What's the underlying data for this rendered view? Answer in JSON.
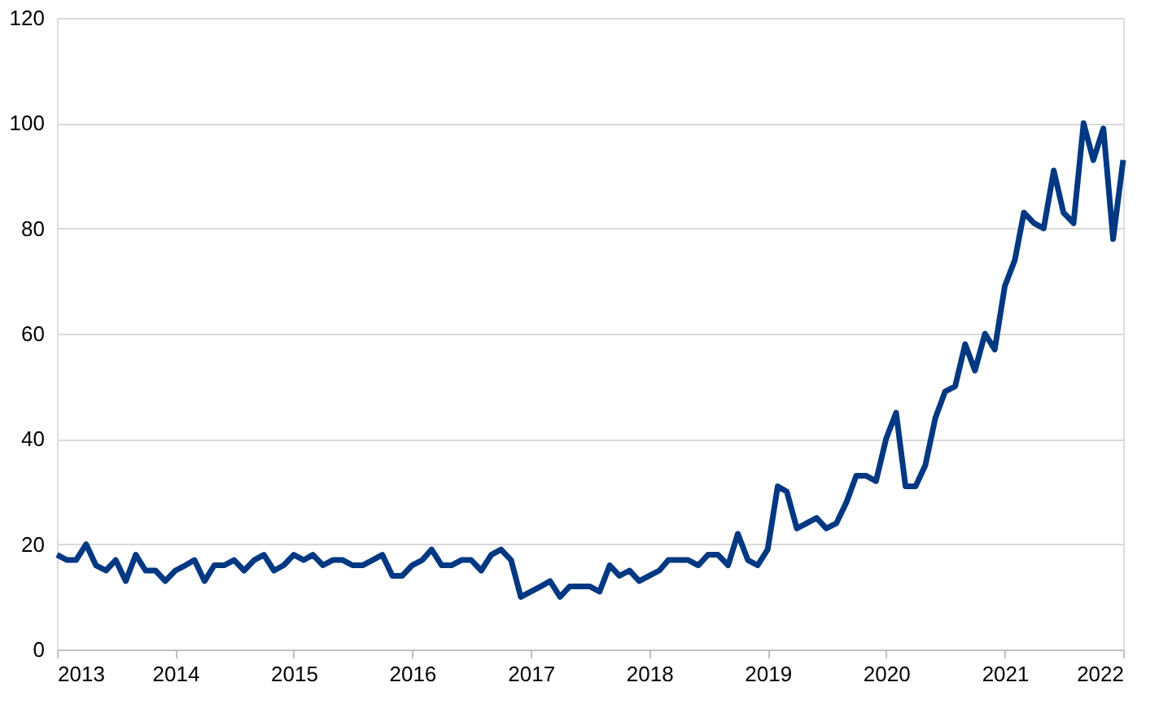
{
  "chart_data": {
    "type": "line",
    "x": [
      "2013-01",
      "2013-02",
      "2013-03",
      "2013-04",
      "2013-05",
      "2013-06",
      "2013-07",
      "2013-08",
      "2013-09",
      "2013-10",
      "2013-11",
      "2013-12",
      "2014-01",
      "2014-02",
      "2014-03",
      "2014-04",
      "2014-05",
      "2014-06",
      "2014-07",
      "2014-08",
      "2014-09",
      "2014-10",
      "2014-11",
      "2014-12",
      "2015-01",
      "2015-02",
      "2015-03",
      "2015-04",
      "2015-05",
      "2015-06",
      "2015-07",
      "2015-08",
      "2015-09",
      "2015-10",
      "2015-11",
      "2015-12",
      "2016-01",
      "2016-02",
      "2016-03",
      "2016-04",
      "2016-05",
      "2016-06",
      "2016-07",
      "2016-08",
      "2016-09",
      "2016-10",
      "2016-11",
      "2016-12",
      "2017-01",
      "2017-02",
      "2017-03",
      "2017-04",
      "2017-05",
      "2017-06",
      "2017-07",
      "2017-08",
      "2017-09",
      "2017-10",
      "2017-11",
      "2017-12",
      "2018-01",
      "2018-02",
      "2018-03",
      "2018-04",
      "2018-05",
      "2018-06",
      "2018-07",
      "2018-08",
      "2018-09",
      "2018-10",
      "2018-11",
      "2018-12",
      "2019-01",
      "2019-02",
      "2019-03",
      "2019-04",
      "2019-05",
      "2019-06",
      "2019-07",
      "2019-08",
      "2019-09",
      "2019-10",
      "2019-11",
      "2019-12",
      "2020-01",
      "2020-02",
      "2020-03",
      "2020-04",
      "2020-05",
      "2020-06",
      "2020-07",
      "2020-08",
      "2020-09",
      "2020-10",
      "2020-11",
      "2020-12",
      "2021-01",
      "2021-02",
      "2021-03",
      "2021-04",
      "2021-05",
      "2021-06",
      "2021-07",
      "2021-08",
      "2021-09",
      "2021-10",
      "2021-11",
      "2021-12",
      "2022-01"
    ],
    "series": [
      {
        "color": "#003882",
        "values": [
          18,
          17,
          17,
          20,
          16,
          15,
          17,
          13,
          18,
          15,
          15,
          13,
          15,
          16,
          17,
          13,
          16,
          16,
          17,
          15,
          17,
          18,
          15,
          16,
          18,
          17,
          18,
          16,
          17,
          17,
          16,
          16,
          17,
          18,
          14,
          14,
          16,
          17,
          19,
          16,
          16,
          17,
          17,
          15,
          18,
          19,
          17,
          10,
          11,
          12,
          13,
          10,
          12,
          12,
          12,
          11,
          16,
          14,
          15,
          13,
          14,
          15,
          17,
          17,
          17,
          16,
          18,
          18,
          16,
          22,
          17,
          16,
          19,
          31,
          30,
          23,
          24,
          25,
          23,
          24,
          28,
          33,
          33,
          32,
          40,
          45,
          31,
          31,
          35,
          44,
          49,
          50,
          58,
          53,
          60,
          57,
          69,
          74,
          83,
          81,
          80,
          91,
          83,
          81,
          100,
          93,
          99,
          78,
          93
        ]
      }
    ],
    "xlim": [
      "2013-01",
      "2022-01"
    ],
    "xticks": [
      {
        "value": "2013-01",
        "label": "2013"
      },
      {
        "value": "2014-01",
        "label": "2014"
      },
      {
        "value": "2015-01",
        "label": "2015"
      },
      {
        "value": "2016-01",
        "label": "2016"
      },
      {
        "value": "2017-01",
        "label": "2017"
      },
      {
        "value": "2018-01",
        "label": "2018"
      },
      {
        "value": "2019-01",
        "label": "2019"
      },
      {
        "value": "2020-01",
        "label": "2020"
      },
      {
        "value": "2021-01",
        "label": "2021"
      },
      {
        "value": "2022-01",
        "label": "2022"
      }
    ],
    "ylim": [
      0,
      120
    ],
    "yticks": [
      0,
      20,
      40,
      60,
      80,
      100,
      120
    ],
    "grid": "y",
    "marker": "none",
    "line_style": "solid"
  }
}
